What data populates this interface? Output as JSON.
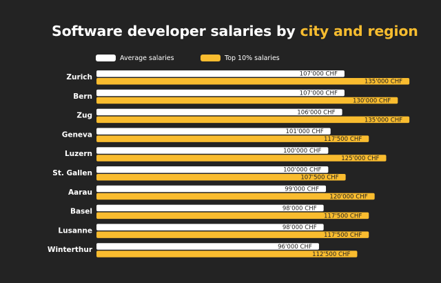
{
  "chart_data": {
    "type": "bar",
    "orientation": "horizontal",
    "title": "Software developer salaries by city and region",
    "title_plain": "Software developer salaries by ",
    "title_highlight": "city and region",
    "xlabel": "",
    "ylabel": "",
    "grid": false,
    "legend_position": "top",
    "unit": "CHF",
    "categories": [
      "Zurich",
      "Bern",
      "Zug",
      "Geneva",
      "Luzern",
      "St. Gallen",
      "Aarau",
      "Basel",
      "Lusanne",
      "Winterthur"
    ],
    "series": [
      {
        "name": "Average salaries",
        "color": "#FFFFFF",
        "values": [
          107000,
          107000,
          106000,
          101000,
          100000,
          100000,
          99000,
          98000,
          98000,
          96000
        ],
        "labels": [
          "107'000 CHF",
          "107'000 CHF",
          "106'000 CHF",
          "101'000 CHF",
          "100'000 CHF",
          "100'000 CHF",
          "99'000 CHF",
          "98'000 CHF",
          "98'000 CHF",
          "96'000 CHF"
        ]
      },
      {
        "name": "Top 10% salaries",
        "color": "#F9BC2F",
        "values": [
          135000,
          130000,
          135000,
          117500,
          125000,
          107500,
          120000,
          117500,
          117500,
          112500
        ],
        "labels": [
          "135'000 CHF",
          "130'000 CHF",
          "135'000 CHF",
          "117'500 CHF",
          "125'000 CHF",
          "107'500 CHF",
          "120'000 CHF",
          "117'500 CHF",
          "117'500 CHF",
          "112'500 CHF"
        ]
      }
    ],
    "xlim": [
      0,
      135000
    ]
  },
  "colors": {
    "background": "#232323",
    "accent": "#F6BC2F",
    "text": "#FFFFFF"
  }
}
